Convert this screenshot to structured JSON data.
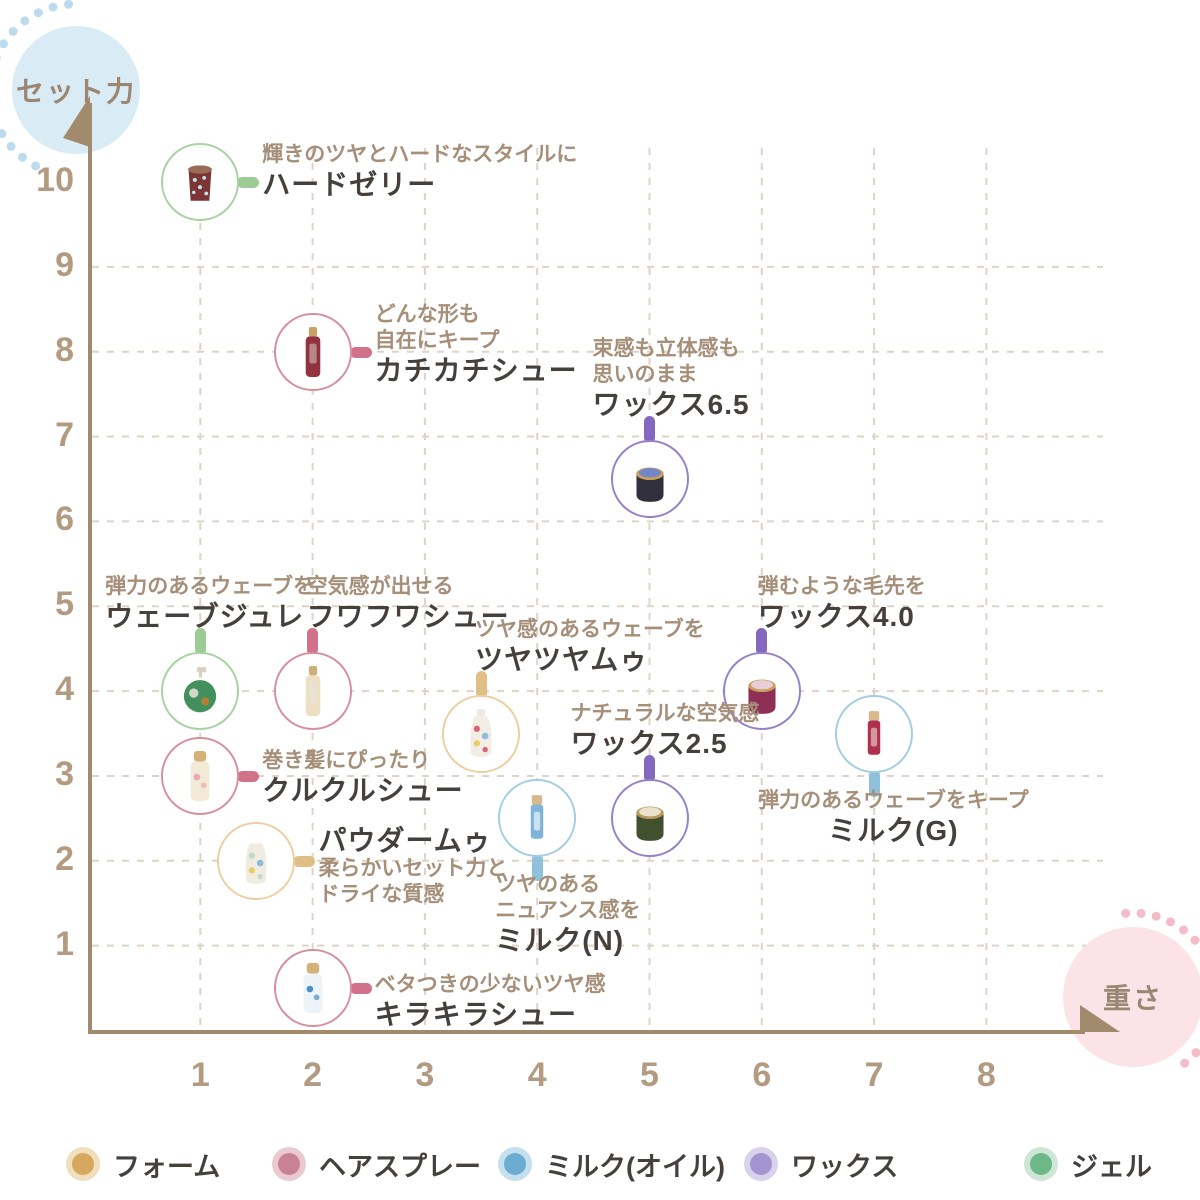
{
  "colors": {
    "axis": "#a28b6d",
    "tick": "#b29b80",
    "axis_label": "#9b8672",
    "grid": "#ded3c6",
    "tagline": "#a58f79",
    "product_name": "#45403c",
    "y_bubble_fill": "#d9ebf5",
    "y_bubble_dots": "#bcdcee",
    "x_bubble_fill": "#fce3e8",
    "x_bubble_dots": "#f4bcc8"
  },
  "categories": {
    "foam": {
      "label": "フォーム",
      "ring": "#ead0a0",
      "stub": "#dfbf85",
      "legend_inner": "#d8a75f",
      "legend_outer": "#f0dfbd"
    },
    "spray": {
      "label": "ヘアスプレー",
      "ring": "#d78e9f",
      "stub": "#d1718a",
      "legend_inner": "#c98295",
      "legend_outer": "#e9cad3"
    },
    "milk": {
      "label": "ミルク(オイル)",
      "ring": "#a5cde2",
      "stub": "#8fc2da",
      "legend_inner": "#6cacd0",
      "legend_outer": "#c5dfee"
    },
    "wax": {
      "label": "ワックス",
      "ring": "#9681c7",
      "stub": "#8468bf",
      "legend_inner": "#a393cf",
      "legend_outer": "#d9d2ec"
    },
    "gel": {
      "label": "ジェル",
      "ring": "#a8d2a2",
      "stub": "#9ccb95",
      "legend_inner": "#6eb888",
      "legend_outer": "#cfe6d6"
    }
  },
  "legend": {
    "order": [
      "foam",
      "spray",
      "milk",
      "wax",
      "gel"
    ]
  },
  "chart_data": {
    "type": "scatter",
    "title": "",
    "xlabel": "重さ",
    "ylabel": "セット力",
    "xlim": [
      0,
      8.8
    ],
    "ylim": [
      0,
      10.9
    ],
    "x_ticks": [
      1,
      2,
      3,
      4,
      5,
      6,
      7,
      8
    ],
    "y_ticks": [
      10,
      9,
      8,
      7,
      6,
      5,
      4,
      3,
      2,
      1
    ],
    "grid": true,
    "legend_position": "bottom",
    "points": [
      {
        "name": "ハードゼリー",
        "tagline": [
          "輝きのツヤとハードなスタイルに"
        ],
        "x": 1,
        "y": 10,
        "category": "gel",
        "icon": "cup",
        "icon_colors": [
          "#7c3434",
          "#9a6a58",
          "#bfe3e8"
        ],
        "label_side": "right",
        "label_dy": -40
      },
      {
        "name": "カチカチシュー",
        "tagline": [
          "どんな形も",
          "自在にキープ"
        ],
        "x": 2,
        "y": 8,
        "category": "spray",
        "icon": "bottle",
        "icon_colors": [
          "#93323f",
          "#c9a26a",
          "#d6cfc5"
        ],
        "label_side": "right",
        "label_dy": -50
      },
      {
        "name": "ワックス6.5",
        "tagline": [
          "束感も立体感も",
          "思いのまま"
        ],
        "x": 5,
        "y": 6.5,
        "category": "wax",
        "icon": "waxjar",
        "icon_colors": [
          "#33303e",
          "#7287c9",
          "#c9a05a"
        ],
        "label_side": "top",
        "label_dx": -57
      },
      {
        "name": "ウェーブジュレ",
        "tagline": [
          "弾力のあるウェーブを"
        ],
        "x": 1,
        "y": 4,
        "category": "gel",
        "icon": "pump",
        "icon_colors": [
          "#42905c",
          "#d8d2c2",
          "#d07a2a"
        ],
        "label_side": "top",
        "label_dx": -95
      },
      {
        "name": "フワフワシュー",
        "tagline": [
          "空気感が出せる"
        ],
        "x": 2,
        "y": 4,
        "category": "spray",
        "icon": "bottle",
        "icon_colors": [
          "#ecdfc4",
          "#cdb07a",
          "#e8e3da"
        ],
        "label_side": "top",
        "label_dx": -6
      },
      {
        "name": "ツヤツヤムゥ",
        "tagline": [
          "ツヤ感のあるウェーブを"
        ],
        "x": 3.5,
        "y": 3.5,
        "category": "foam",
        "icon": "roundbottle",
        "icon_colors": [
          "#f2eee6",
          "#ece9e2",
          "#d84a5f"
        ],
        "label_side": "top",
        "label_dx": -6
      },
      {
        "name": "ワックス4.0",
        "tagline": [
          "弾むような毛先を"
        ],
        "x": 6,
        "y": 4,
        "category": "wax",
        "icon": "waxjar",
        "icon_colors": [
          "#8e2f55",
          "#e9cdd8",
          "#c9a05a"
        ],
        "label_side": "top",
        "label_dx": -4
      },
      {
        "name": "ミルク(G)",
        "tagline": [
          "弾力のあるウェーブをキープ"
        ],
        "x": 7,
        "y": 3.5,
        "category": "milk",
        "icon": "slim",
        "icon_colors": [
          "#b03050",
          "#d8b98c",
          "#e8e0d0"
        ],
        "label_side": "bottom",
        "label_dx": -116,
        "center_name": true
      },
      {
        "name": "クルクルシュー",
        "tagline": [
          "巻き髪にぴったり"
        ],
        "x": 1,
        "y": 3,
        "category": "spray",
        "icon": "spray",
        "icon_colors": [
          "#f2e9d6",
          "#d2b276",
          "#e9a8b8"
        ],
        "label_side": "right",
        "label_dy": -28
      },
      {
        "name": "ミルク(N)",
        "tagline": [
          "ツヤのある",
          "ニュアンス感を"
        ],
        "x": 4,
        "y": 2.5,
        "category": "milk",
        "icon": "slim",
        "icon_colors": [
          "#7fb3d8",
          "#d8b98c",
          "#ffffff"
        ],
        "label_side": "bottom",
        "label_dx": -42
      },
      {
        "name": "ワックス2.5",
        "tagline": [
          "ナチュラルな空気感"
        ],
        "x": 5,
        "y": 2.5,
        "category": "wax",
        "icon": "waxjar",
        "icon_colors": [
          "#41502f",
          "#eae2ca",
          "#b89a60"
        ],
        "label_side": "top",
        "label_dx": -79
      },
      {
        "name": "パウダームゥ",
        "tagline": [
          "柔らかいセット力と",
          "ドライな質感"
        ],
        "x": 1.5,
        "y": 2,
        "category": "foam",
        "icon": "roundbottle",
        "icon_colors": [
          "#f0ece4",
          "#ffffff",
          "#b8d8c0"
        ],
        "label_side": "right",
        "label_dy": -37,
        "name_first": true
      },
      {
        "name": "キラキラシュー",
        "tagline": [
          "ベタつきの少ないツヤ感"
        ],
        "x": 2,
        "y": 0.5,
        "category": "spray",
        "icon": "spray",
        "icon_colors": [
          "#eef3f7",
          "#d2b276",
          "#4a90c8"
        ],
        "label_side": "right",
        "label_dy": -16
      }
    ]
  }
}
